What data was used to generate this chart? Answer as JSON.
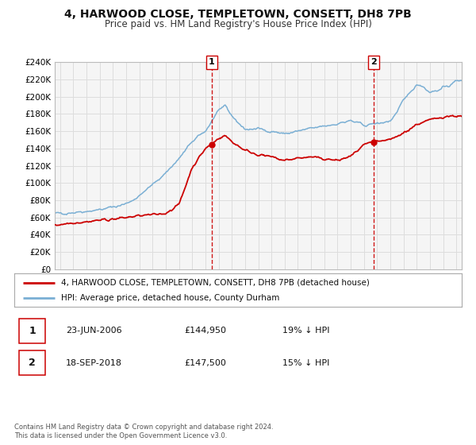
{
  "title": "4, HARWOOD CLOSE, TEMPLETOWN, CONSETT, DH8 7PB",
  "subtitle": "Price paid vs. HM Land Registry's House Price Index (HPI)",
  "title_fontsize": 10,
  "subtitle_fontsize": 8.5,
  "ylabel_ticks": [
    "£0",
    "£20K",
    "£40K",
    "£60K",
    "£80K",
    "£100K",
    "£120K",
    "£140K",
    "£160K",
    "£180K",
    "£200K",
    "£220K",
    "£240K"
  ],
  "ytick_values": [
    0,
    20000,
    40000,
    60000,
    80000,
    100000,
    120000,
    140000,
    160000,
    180000,
    200000,
    220000,
    240000
  ],
  "ylim": [
    0,
    240000
  ],
  "xlim_start": 1994.6,
  "xlim_end": 2025.4,
  "red_line_color": "#cc0000",
  "blue_line_color": "#7aafd4",
  "background_color": "#ffffff",
  "plot_bg_color": "#f5f5f5",
  "grid_color": "#dddddd",
  "marker1_x": 2006.48,
  "marker1_y": 144950,
  "marker2_x": 2018.72,
  "marker2_y": 147500,
  "vline1_x": 2006.48,
  "vline2_x": 2018.72,
  "legend_line1": "4, HARWOOD CLOSE, TEMPLETOWN, CONSETT, DH8 7PB (detached house)",
  "legend_line2": "HPI: Average price, detached house, County Durham",
  "ann1_date": "23-JUN-2006",
  "ann1_price": "£144,950",
  "ann1_hpi": "19% ↓ HPI",
  "ann2_date": "18-SEP-2018",
  "ann2_price": "£147,500",
  "ann2_hpi": "15% ↓ HPI",
  "footnote1": "Contains HM Land Registry data © Crown copyright and database right 2024.",
  "footnote2": "This data is licensed under the Open Government Licence v3.0."
}
